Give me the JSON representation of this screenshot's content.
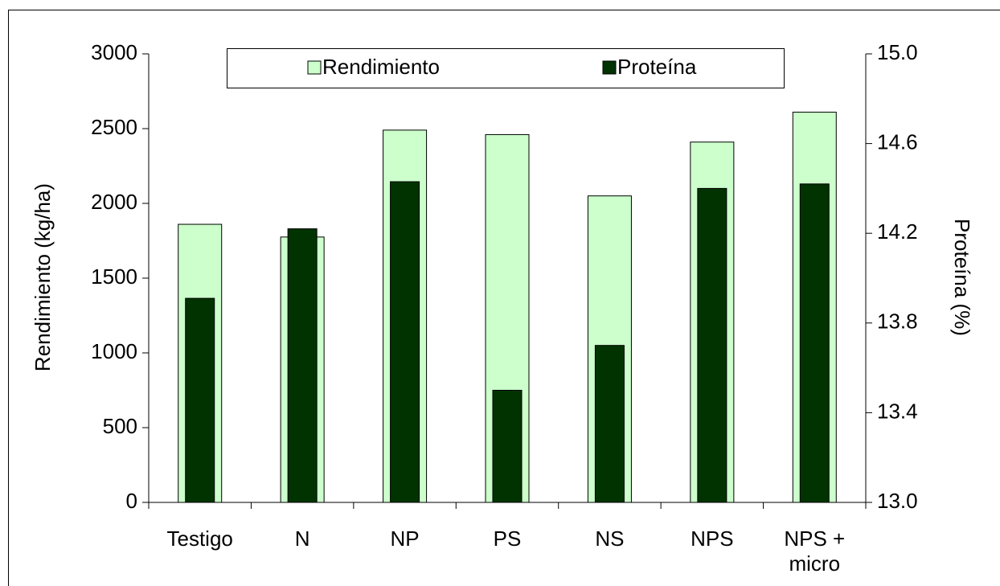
{
  "chart_data": {
    "type": "bar",
    "categories": [
      "Testigo",
      "N",
      "NP",
      "PS",
      "NS",
      "NPS",
      "NPS + micro"
    ],
    "series": [
      {
        "name": "Rendimiento",
        "color": "#ccffcc",
        "values": [
          1860,
          1775,
          2490,
          2460,
          2050,
          2410,
          2610
        ]
      },
      {
        "name": "Proteína",
        "color": "#003300",
        "axis": "y2",
        "values": [
          13.91,
          14.22,
          14.43,
          13.5,
          13.7,
          14.4,
          14.42
        ]
      }
    ],
    "ylabel": "Rendimiento (kg/ha)",
    "y2label": "Proteína (%)",
    "ylim": [
      0,
      3000
    ],
    "yticks": [
      0,
      500,
      1000,
      1500,
      2000,
      2500,
      3000
    ],
    "y2lim": [
      13,
      15
    ],
    "y2ticks": [
      {
        "value": 13,
        "label": "13.0"
      },
      13.4,
      13.8,
      14.2,
      14.6,
      {
        "value": 15,
        "label": "15.0"
      }
    ],
    "legend": "top",
    "grid": false
  }
}
